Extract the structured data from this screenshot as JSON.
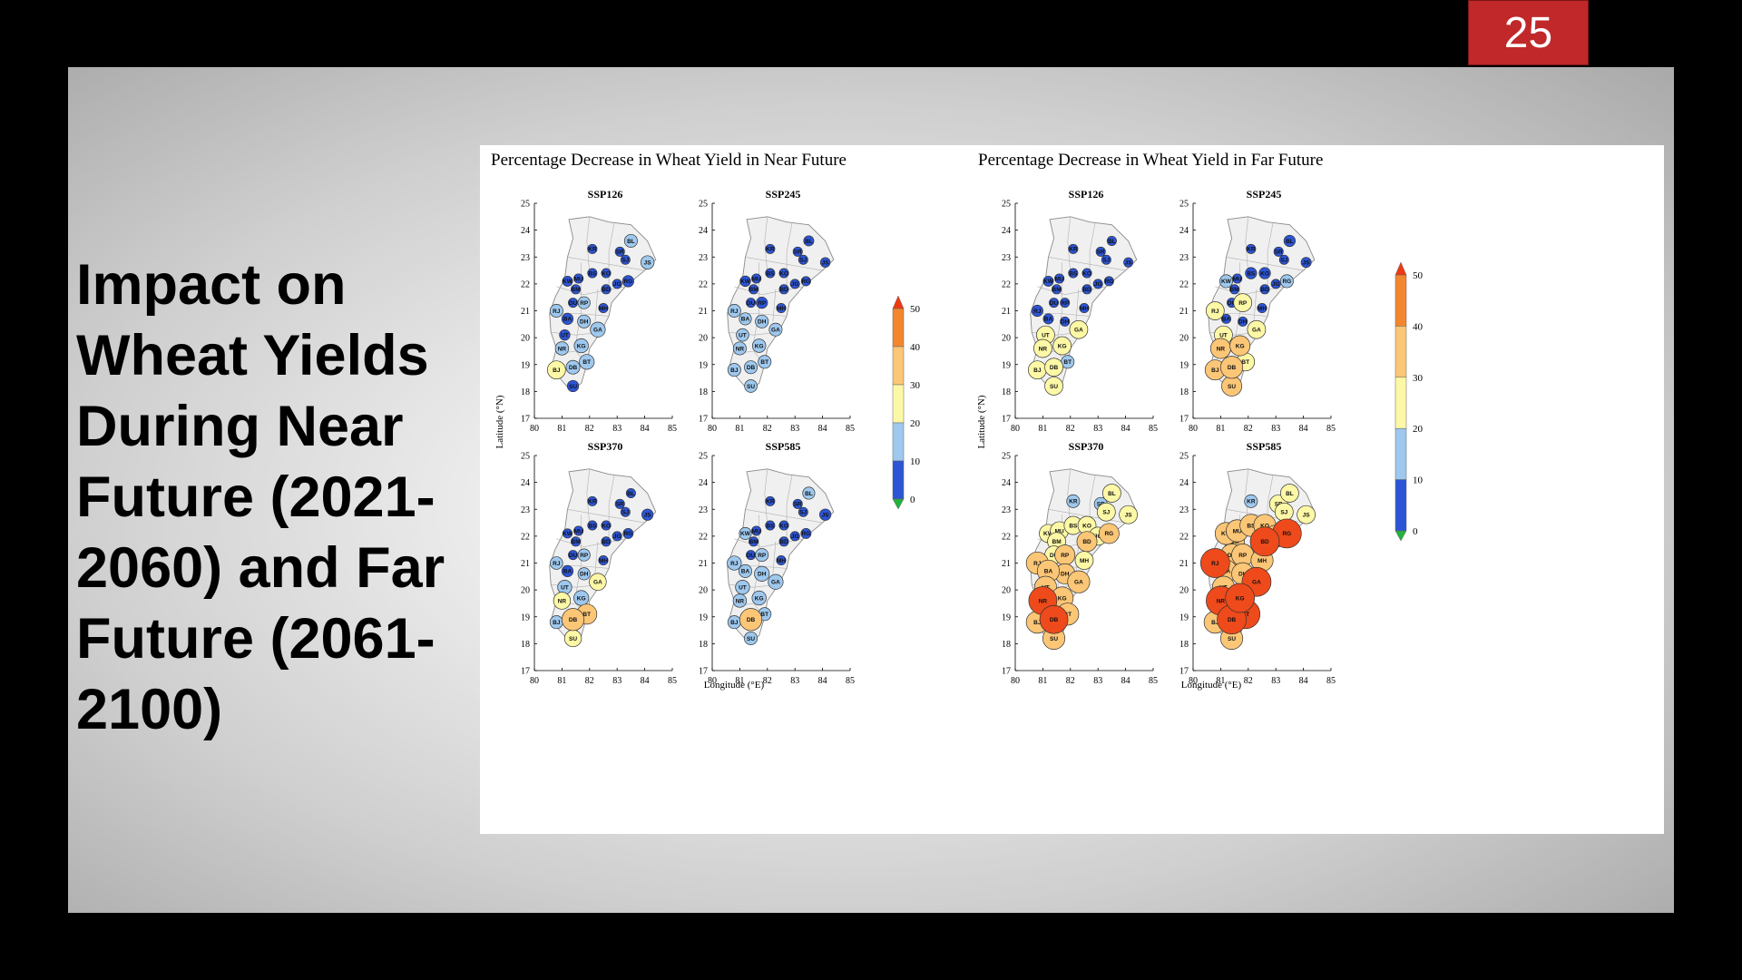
{
  "slide": {
    "number": "25",
    "title": "Impact on Wheat Yields During Near Future (2021-2060) and Far Future (2061-2100)"
  },
  "figure": {
    "groups": [
      {
        "title": "Percentage Decrease in Wheat Yield in Near Future"
      },
      {
        "title": "Percentage Decrease in Wheat Yield in Far Future"
      }
    ],
    "panels": [
      "SSP126",
      "SSP245",
      "SSP370",
      "SSP585"
    ],
    "xlabel": "Longitude (°E)",
    "ylabel": "Latitude (°N)",
    "x_ticks": [
      "80",
      "81",
      "82",
      "83",
      "84",
      "85"
    ],
    "y_ticks": [
      "25",
      "24",
      "23",
      "22",
      "21",
      "20",
      "19",
      "18",
      "17"
    ],
    "colorbar": {
      "ticks": [
        "50",
        "40",
        "30",
        "20",
        "10",
        "0"
      ]
    },
    "colors": {
      "dark_blue": "#2c55d6",
      "light_blue": "#9ec8ee",
      "yellow": "#fdf8a6",
      "light_orange": "#fbc676",
      "orange": "#f4862e",
      "red_orange": "#ef4a1b",
      "green": "#23b23c",
      "map_fill": "#f0f0f0",
      "map_edge": "#8a8a8a"
    }
  },
  "chart_data": {
    "type": "scatter",
    "x_label": "Longitude (°E)",
    "y_label": "Latitude (°N)",
    "xlim": [
      80,
      85
    ],
    "ylim": [
      17,
      25
    ],
    "color_classes": [
      {
        "range": [
          0,
          10
        ],
        "color": "#2c55d6"
      },
      {
        "range": [
          10,
          20
        ],
        "color": "#9ec8ee"
      },
      {
        "range": [
          20,
          30
        ],
        "color": "#fdf8a6"
      },
      {
        "range": [
          30,
          40
        ],
        "color": "#fbc676"
      },
      {
        "range": [
          40,
          50
        ],
        "color": "#f4862e"
      },
      {
        "range": [
          50,
          60
        ],
        "color": "#ef4a1b"
      }
    ],
    "districts": [
      {
        "code": "KR",
        "lon": 82.1,
        "lat": 23.3
      },
      {
        "code": "SR",
        "lon": 83.1,
        "lat": 23.2
      },
      {
        "code": "BL",
        "lon": 83.5,
        "lat": 23.6
      },
      {
        "code": "SJ",
        "lon": 83.3,
        "lat": 22.9
      },
      {
        "code": "JS",
        "lon": 84.1,
        "lat": 22.8
      },
      {
        "code": "KW",
        "lon": 81.2,
        "lat": 22.1
      },
      {
        "code": "MU",
        "lon": 81.6,
        "lat": 22.2
      },
      {
        "code": "BS",
        "lon": 82.1,
        "lat": 22.4
      },
      {
        "code": "KO",
        "lon": 82.6,
        "lat": 22.4
      },
      {
        "code": "JG",
        "lon": 83.0,
        "lat": 22.0
      },
      {
        "code": "RG",
        "lon": 83.4,
        "lat": 22.1
      },
      {
        "code": "BM",
        "lon": 81.5,
        "lat": 21.8
      },
      {
        "code": "BD",
        "lon": 82.6,
        "lat": 21.8
      },
      {
        "code": "DU",
        "lon": 81.4,
        "lat": 21.3
      },
      {
        "code": "RP",
        "lon": 81.8,
        "lat": 21.3
      },
      {
        "code": "MH",
        "lon": 82.5,
        "lat": 21.1
      },
      {
        "code": "RJ",
        "lon": 80.8,
        "lat": 21.0
      },
      {
        "code": "BA",
        "lon": 81.2,
        "lat": 20.7
      },
      {
        "code": "DH",
        "lon": 81.8,
        "lat": 20.6
      },
      {
        "code": "GA",
        "lon": 82.3,
        "lat": 20.3
      },
      {
        "code": "UT",
        "lon": 81.1,
        "lat": 20.1
      },
      {
        "code": "NR",
        "lon": 81.0,
        "lat": 19.6
      },
      {
        "code": "KG",
        "lon": 81.7,
        "lat": 19.7
      },
      {
        "code": "BT",
        "lon": 81.9,
        "lat": 19.1
      },
      {
        "code": "BJ",
        "lon": 80.8,
        "lat": 18.8
      },
      {
        "code": "DB",
        "lon": 81.4,
        "lat": 18.9
      },
      {
        "code": "SU",
        "lon": 81.4,
        "lat": 18.2
      }
    ],
    "scenarios": [
      {
        "period": "Near Future",
        "scenario": "SSP126",
        "values": {
          "KR": 3,
          "SR": 3,
          "BL": 12,
          "SJ": 3,
          "JS": 13,
          "KW": 5,
          "MU": 3,
          "BS": 3,
          "KO": 3,
          "JG": 3,
          "RG": 8,
          "BM": 3,
          "BD": 3,
          "DU": 3,
          "RP": 10,
          "MH": 3,
          "RJ": 12,
          "BA": 8,
          "DH": 12,
          "GA": 17,
          "UT": 6,
          "NR": 13,
          "KG": 15,
          "BT": 17,
          "BJ": 25,
          "DB": 14,
          "SU": 8
        }
      },
      {
        "period": "Near Future",
        "scenario": "SSP245",
        "values": {
          "KR": 3,
          "SR": 3,
          "BL": 5,
          "SJ": 3,
          "JS": 4,
          "KW": 6,
          "MU": 3,
          "BS": 3,
          "KO": 3,
          "JG": 3,
          "RG": 3,
          "BM": 3,
          "BD": 3,
          "DU": 3,
          "RP": 8,
          "MH": 3,
          "RJ": 12,
          "BA": 10,
          "DH": 12,
          "GA": 12,
          "UT": 11,
          "NR": 12,
          "KG": 13,
          "BT": 12,
          "BJ": 12,
          "DB": 12,
          "SU": 11
        }
      },
      {
        "period": "Near Future",
        "scenario": "SSP370",
        "values": {
          "KR": 3,
          "SR": 3,
          "BL": 3,
          "SJ": 3,
          "JS": 8,
          "KW": 3,
          "MU": 3,
          "BS": 3,
          "KO": 3,
          "JG": 3,
          "RG": 5,
          "BM": 3,
          "BD": 3,
          "DU": 3,
          "RP": 10,
          "MH": 3,
          "RJ": 11,
          "BA": 8,
          "DH": 10,
          "GA": 22,
          "UT": 15,
          "NR": 22,
          "KG": 17,
          "BT": 30,
          "BJ": 12,
          "DB": 35,
          "SU": 22
        }
      },
      {
        "period": "Near Future",
        "scenario": "SSP585",
        "values": {
          "KR": 3,
          "SR": 3,
          "BL": 10,
          "SJ": 3,
          "JS": 8,
          "KW": 10,
          "MU": 3,
          "BS": 3,
          "KO": 3,
          "JG": 3,
          "RG": 5,
          "BM": 3,
          "BD": 3,
          "DU": 3,
          "RP": 12,
          "MH": 3,
          "RJ": 15,
          "BA": 12,
          "DH": 17,
          "GA": 17,
          "UT": 15,
          "NR": 13,
          "KG": 15,
          "BT": 12,
          "BJ": 12,
          "DB": 35,
          "SU": 12
        }
      },
      {
        "period": "Far Future",
        "scenario": "SSP126",
        "values": {
          "KR": 3,
          "SR": 3,
          "BL": 3,
          "SJ": 3,
          "JS": 3,
          "KW": 5,
          "MU": 3,
          "BS": 3,
          "KO": 3,
          "JG": 3,
          "RG": 3,
          "BM": 3,
          "BD": 3,
          "DU": 3,
          "RP": 3,
          "MH": 3,
          "RJ": 8,
          "BA": 5,
          "DH": 3,
          "GA": 25,
          "UT": 25,
          "NR": 25,
          "KG": 25,
          "BT": 12,
          "BJ": 25,
          "DB": 25,
          "SU": 25
        }
      },
      {
        "period": "Far Future",
        "scenario": "SSP245",
        "values": {
          "KR": 3,
          "SR": 3,
          "BL": 8,
          "SJ": 3,
          "JS": 5,
          "KW": 12,
          "MU": 3,
          "BS": 8,
          "KO": 8,
          "JG": 3,
          "RG": 12,
          "BM": 3,
          "BD": 3,
          "DU": 3,
          "RP": 25,
          "MH": 3,
          "RJ": 25,
          "BA": 3,
          "DH": 3,
          "GA": 25,
          "UT": 25,
          "NR": 30,
          "KG": 30,
          "BT": 25,
          "BJ": 30,
          "DB": 35,
          "SU": 30
        }
      },
      {
        "period": "Far Future",
        "scenario": "SSP370",
        "values": {
          "KR": 12,
          "SR": 12,
          "BL": 25,
          "SJ": 25,
          "JS": 25,
          "KW": 25,
          "MU": 25,
          "BS": 25,
          "KO": 25,
          "JG": 25,
          "RG": 30,
          "BM": 25,
          "BD": 30,
          "DU": 25,
          "RP": 30,
          "MH": 25,
          "RJ": 35,
          "BA": 35,
          "DH": 30,
          "GA": 35,
          "UT": 35,
          "NR": 50,
          "KG": 35,
          "BT": 35,
          "BJ": 35,
          "DB": 50,
          "SU": 35
        }
      },
      {
        "period": "Far Future",
        "scenario": "SSP585",
        "values": {
          "KR": 12,
          "SR": 25,
          "BL": 25,
          "SJ": 25,
          "JS": 25,
          "KW": 35,
          "MU": 35,
          "BS": 35,
          "KO": 35,
          "JG": 35,
          "RG": 55,
          "BM": 30,
          "BD": 55,
          "DU": 35,
          "RP": 35,
          "MH": 35,
          "RJ": 55,
          "BA": 35,
          "DH": 35,
          "GA": 55,
          "UT": 35,
          "NR": 55,
          "KG": 58,
          "BT": 55,
          "BJ": 35,
          "DB": 55,
          "SU": 35
        }
      }
    ]
  }
}
